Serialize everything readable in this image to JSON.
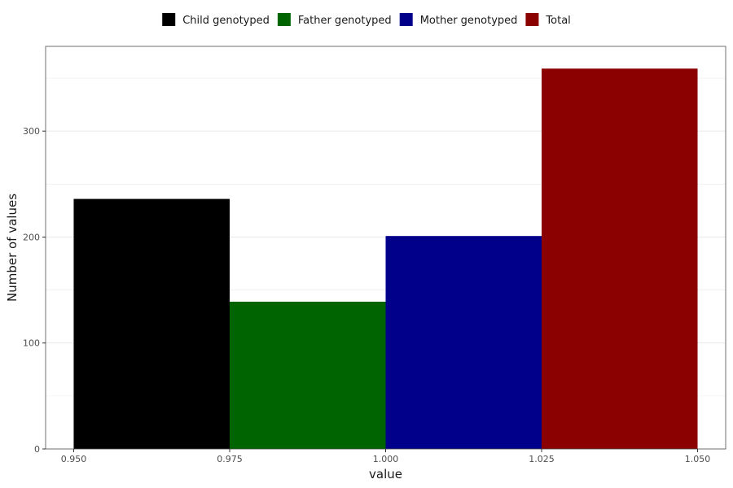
{
  "chart_data": {
    "type": "bar",
    "title": "",
    "xlabel": "value",
    "ylabel": "Number of values",
    "x_range": [
      0.9455,
      1.0545
    ],
    "ylim": [
      0,
      380
    ],
    "x_ticks": [
      {
        "value": 0.95,
        "label": "0.950"
      },
      {
        "value": 0.975,
        "label": "0.975"
      },
      {
        "value": 1.0,
        "label": "1.000"
      },
      {
        "value": 1.025,
        "label": "1.025"
      },
      {
        "value": 1.05,
        "label": "1.050"
      }
    ],
    "y_ticks": [
      {
        "value": 0,
        "label": "0"
      },
      {
        "value": 100,
        "label": "100"
      },
      {
        "value": 200,
        "label": "200"
      },
      {
        "value": 300,
        "label": "300"
      }
    ],
    "y_minor_gridlines": [
      50,
      150,
      250,
      350
    ],
    "grid": true,
    "legend_position": "top",
    "series": [
      {
        "name": "Child genotyped",
        "color": "#000000",
        "x_start": 0.95,
        "x_end": 0.975,
        "value": 236
      },
      {
        "name": "Father genotyped",
        "color": "#006400",
        "x_start": 0.975,
        "x_end": 1.0,
        "value": 139
      },
      {
        "name": "Mother genotyped",
        "color": "#00008B",
        "x_start": 1.0,
        "x_end": 1.025,
        "value": 201
      },
      {
        "name": "Total",
        "color": "#8B0000",
        "x_start": 1.025,
        "x_end": 1.05,
        "value": 359
      }
    ]
  }
}
